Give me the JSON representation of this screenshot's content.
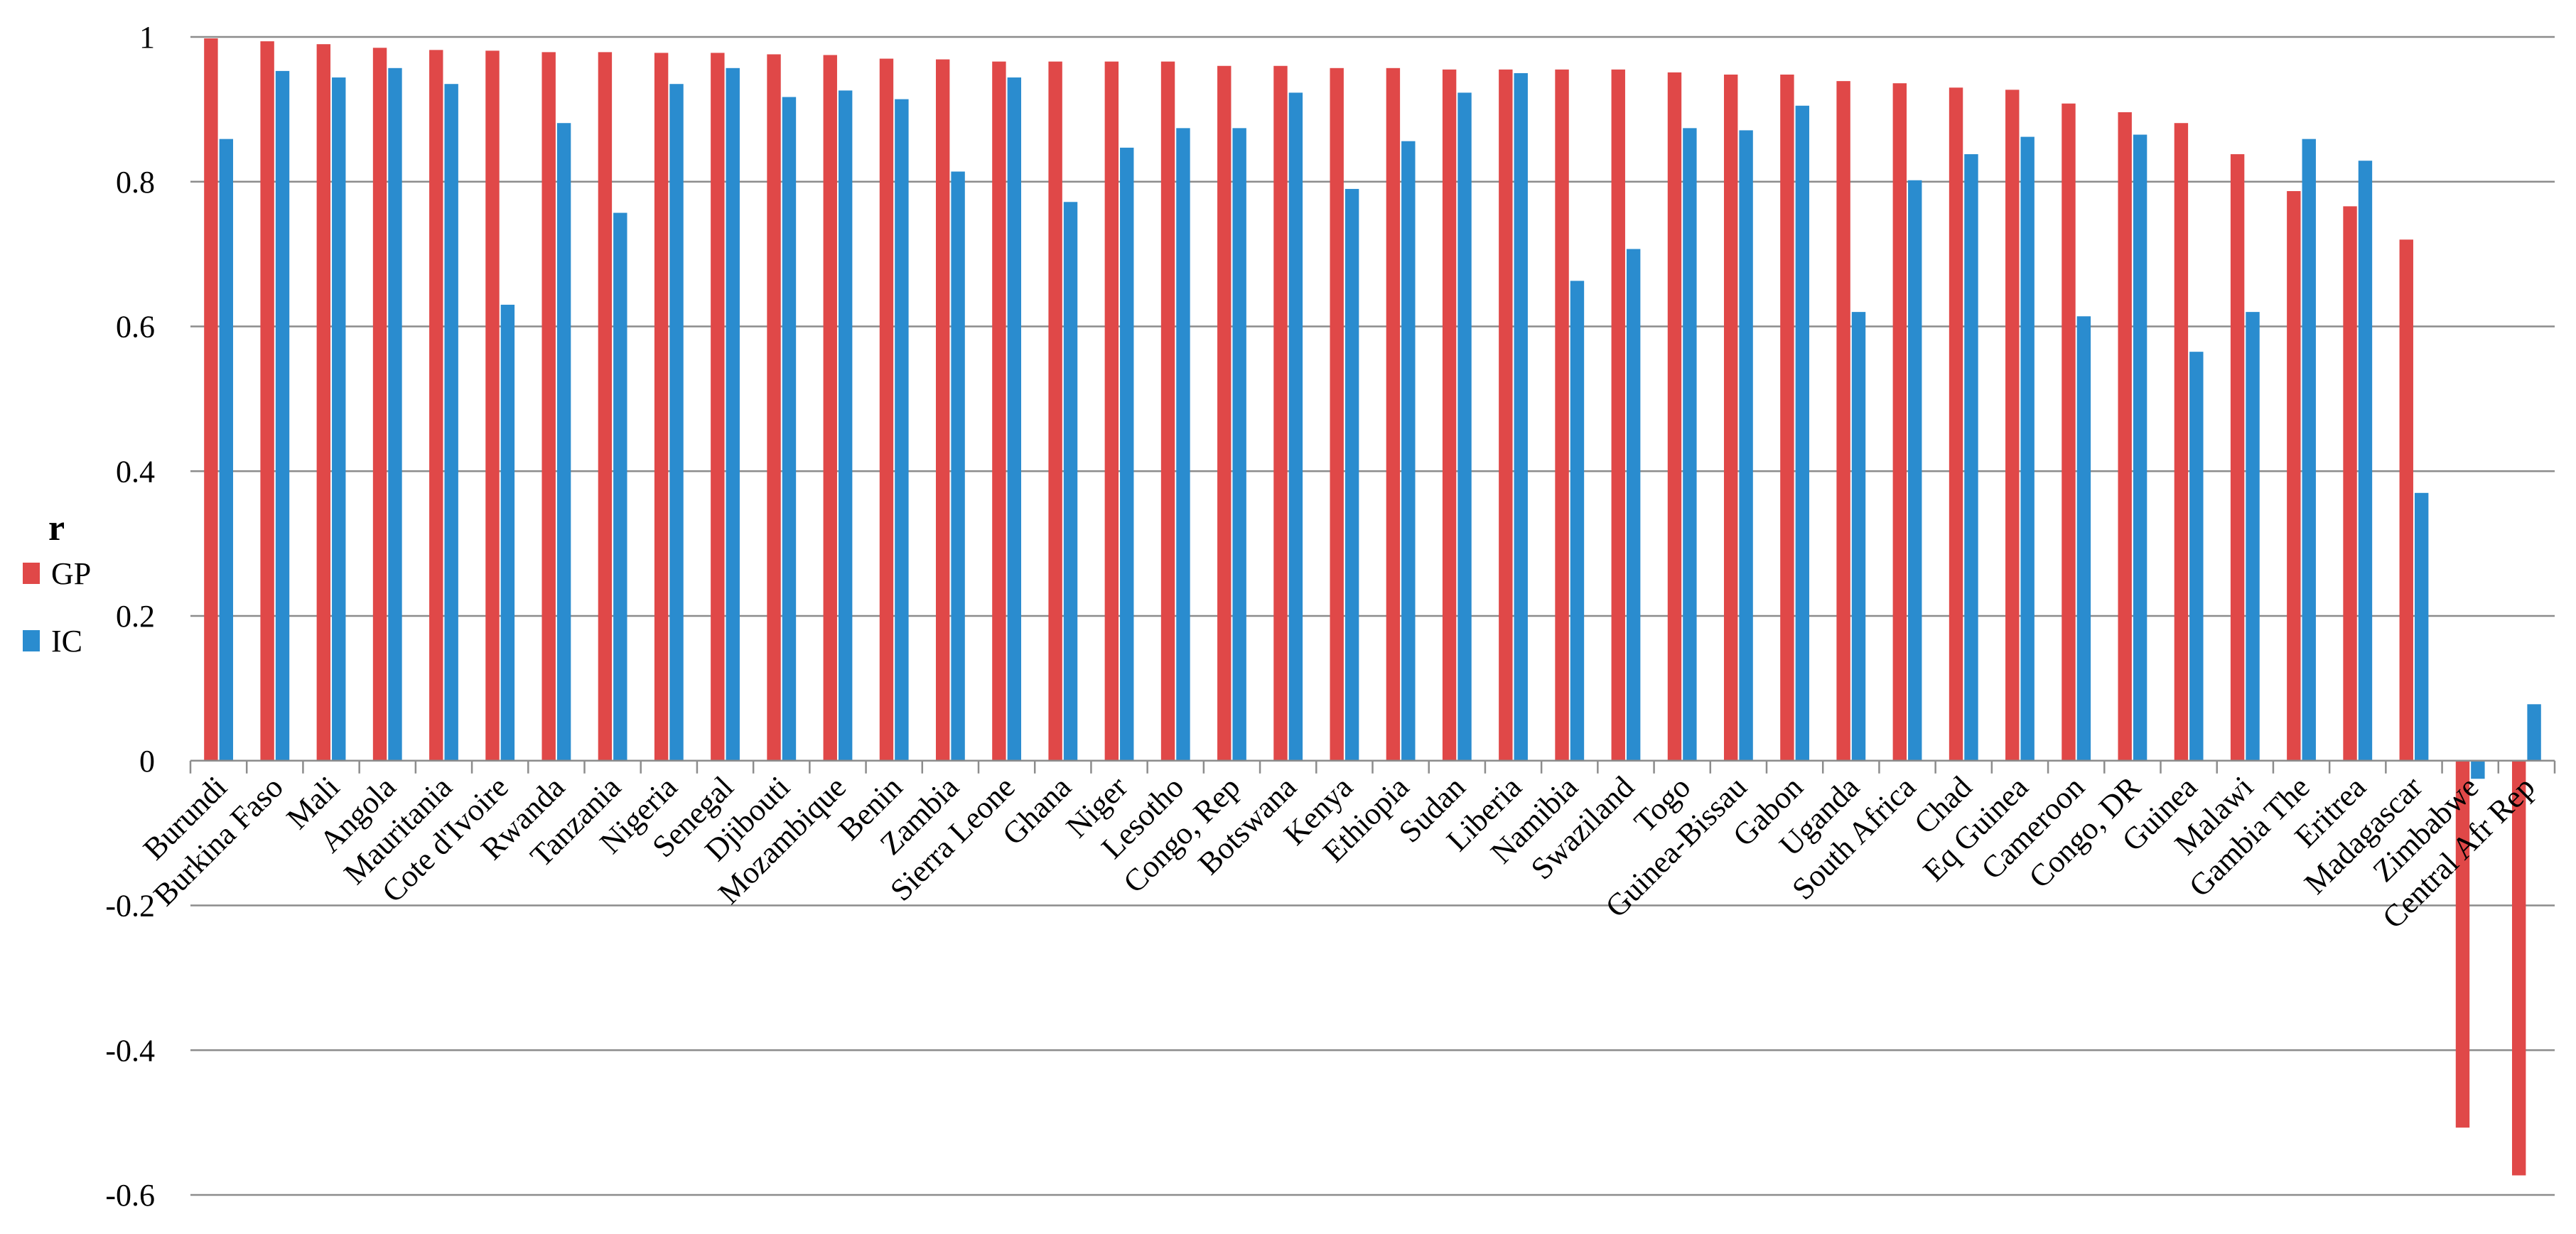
{
  "chart_data": {
    "type": "bar",
    "title": "",
    "xlabel": "",
    "ylabel": "r",
    "ylim": [
      -0.6,
      1.0
    ],
    "yticks": [
      "1",
      "0.8",
      "0.6",
      "0.4",
      "0.2",
      "0",
      "-0.2",
      "-0.4",
      "-0.6"
    ],
    "ytick_values": [
      1,
      0.8,
      0.6,
      0.4,
      0.2,
      0,
      -0.2,
      -0.4,
      -0.6
    ],
    "grid": true,
    "legend": {
      "title": "r",
      "placement": "left",
      "entries": [
        "GP",
        "IC"
      ]
    },
    "categories": [
      "Burundi",
      "Burkina Faso",
      "Mali",
      "Angola",
      "Mauritania",
      "Cote d'Ivoire",
      "Rwanda",
      "Tanzania",
      "Nigeria",
      "Senegal",
      "Djibouti",
      "Mozambique",
      "Benin",
      "Zambia",
      "Sierra Leone",
      "Ghana",
      "Niger",
      "Lesotho",
      "Congo, Rep",
      "Botswana",
      "Kenya",
      "Ethiopia",
      "Sudan",
      "Liberia",
      "Namibia",
      "Swaziland",
      "Togo",
      "Guinea-Bissau",
      "Gabon",
      "Uganda",
      "South Africa",
      "Chad",
      "Eq Guinea",
      "Cameroon",
      "Congo, DR",
      "Guinea",
      "Malawi",
      "Gambia The",
      "Eritrea",
      "Madagascar",
      "Zimbabwe",
      "Central Afr Rep"
    ],
    "series": [
      {
        "name": "GP",
        "color": "#e04848",
        "values": [
          0.998,
          0.994,
          0.99,
          0.985,
          0.982,
          0.981,
          0.979,
          0.979,
          0.978,
          0.978,
          0.976,
          0.975,
          0.97,
          0.969,
          0.966,
          0.966,
          0.966,
          0.966,
          0.96,
          0.96,
          0.957,
          0.957,
          0.955,
          0.955,
          0.955,
          0.955,
          0.951,
          0.948,
          0.948,
          0.939,
          0.936,
          0.93,
          0.927,
          0.908,
          0.896,
          0.881,
          0.838,
          0.787,
          0.766,
          0.72,
          -0.507,
          -0.573
        ]
      },
      {
        "name": "IC",
        "color": "#2a8ccf",
        "values": [
          0.859,
          0.953,
          0.944,
          0.957,
          0.935,
          0.63,
          0.881,
          0.757,
          0.935,
          0.957,
          0.917,
          0.926,
          0.914,
          0.814,
          0.944,
          0.772,
          0.847,
          0.874,
          0.874,
          0.923,
          0.79,
          0.856,
          0.923,
          0.95,
          0.663,
          0.707,
          0.874,
          0.871,
          0.905,
          0.62,
          0.802,
          0.838,
          0.862,
          0.614,
          0.865,
          0.565,
          0.62,
          0.859,
          0.829,
          0.37,
          -0.025,
          0.078
        ]
      }
    ]
  }
}
